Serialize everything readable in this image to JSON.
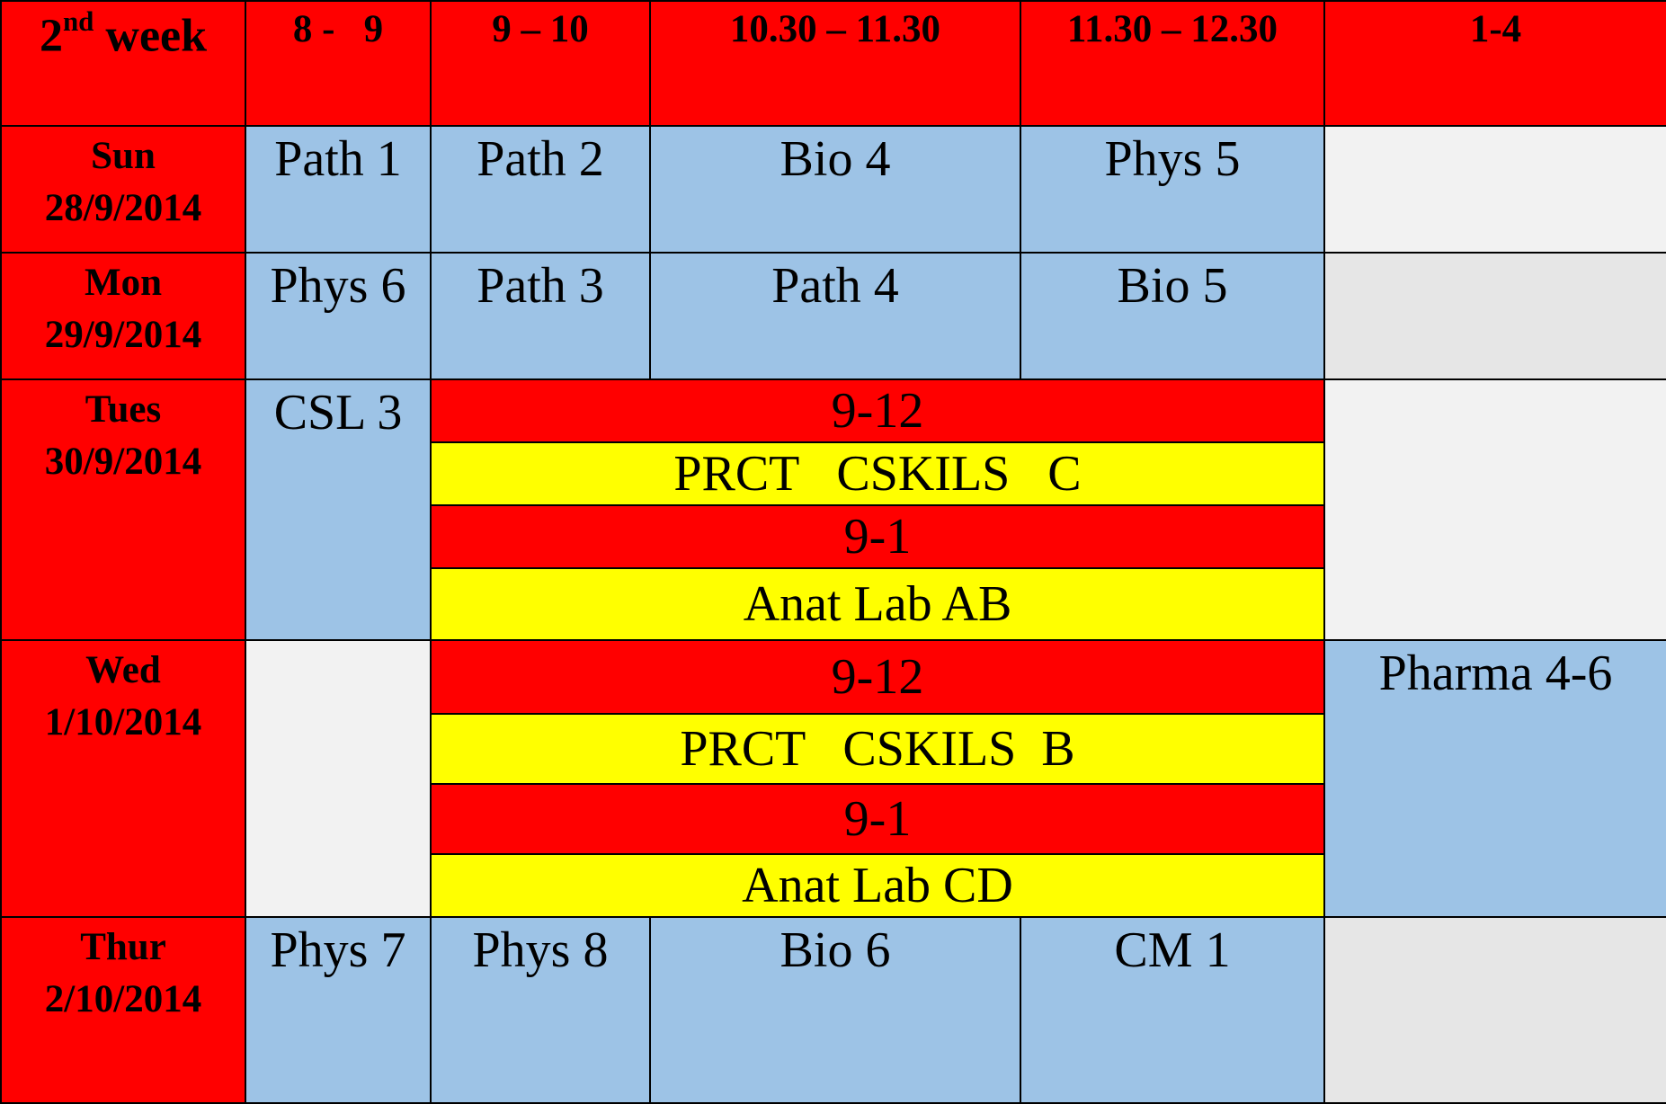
{
  "header": {
    "week_num": "2",
    "week_sup": "nd",
    "week_word": " week",
    "slots": [
      "8 -   9",
      "9 – 10",
      "10.30 – 11.30",
      "11.30 – 12.30",
      "1-4"
    ]
  },
  "days": {
    "sun": {
      "name": "Sun",
      "date": "28/9/2014",
      "s1": "Path 1",
      "s2": "Path 2",
      "s3": "Bio 4",
      "s4": "Phys 5"
    },
    "mon": {
      "name": "Mon",
      "date": "29/9/2014",
      "s1": "Phys 6",
      "s2": "Path 3",
      "s3": "Path 4",
      "s4": "Bio 5"
    },
    "tue": {
      "name": "Tues",
      "date": "30/9/2014",
      "s1": "CSL 3",
      "time_a": "9-12",
      "session_a": "PRCT   CSKILS   C",
      "time_b": "9-1",
      "session_b": "Anat Lab AB"
    },
    "wed": {
      "name": "Wed",
      "date": "1/10/2014",
      "time_a": "9-12",
      "session_a": "PRCT   CSKILS  B",
      "time_b": "9-1",
      "session_b": "Anat Lab CD",
      "s5": "Pharma 4-6"
    },
    "thu": {
      "name": "Thur",
      "date": "2/10/2014",
      "s1": "Phys 7",
      "s2": "Phys 8",
      "s3": "Bio 6",
      "s4": "CM 1"
    }
  },
  "colors": {
    "header_red": "#ff0000",
    "lecture_blue": "#9dc3e6",
    "practical_yellow": "#ffff00",
    "empty_light": "#f2f2f2",
    "empty_grey": "#e6e6e6",
    "border": "#000000"
  }
}
